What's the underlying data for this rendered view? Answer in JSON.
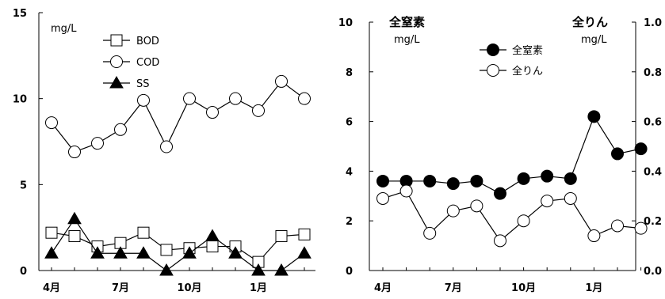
{
  "chart_data": [
    {
      "type": "line",
      "unit_label": "mg/L",
      "ylim": [
        0,
        15
      ],
      "y_ticks": [
        "0",
        "5",
        "10",
        "15"
      ],
      "x_tick_labels": [
        "4月",
        "7月",
        "10月",
        "1月"
      ],
      "x_tick_index": [
        0,
        3,
        6,
        9
      ],
      "num_points": 12,
      "legend_position": "top-center",
      "series": [
        {
          "name": "BOD",
          "marker": "square-open",
          "values": [
            2.2,
            2.0,
            1.4,
            1.6,
            2.2,
            1.2,
            1.3,
            1.4,
            1.4,
            0.5,
            2.0,
            2.1
          ]
        },
        {
          "name": "COD",
          "marker": "circle-open",
          "values": [
            8.6,
            6.9,
            7.4,
            8.2,
            9.9,
            7.2,
            10.0,
            9.2,
            10.0,
            9.3,
            11.0,
            10.0
          ]
        },
        {
          "name": "SS",
          "marker": "triangle-filled",
          "values": [
            1.0,
            3.0,
            1.0,
            1.0,
            1.0,
            0.0,
            1.0,
            2.0,
            1.0,
            0.0,
            0.0,
            1.0
          ]
        }
      ]
    },
    {
      "type": "line",
      "left_title": "全窒素",
      "left_unit": "mg/L",
      "right_title": "全りん",
      "right_unit": "mg/L",
      "ylim_left": [
        0,
        10
      ],
      "ylim_right": [
        0,
        1.0
      ],
      "y_ticks_left": [
        "0",
        "2",
        "4",
        "6",
        "8",
        "10"
      ],
      "y_ticks_right": [
        "0.0",
        "0.2",
        "0.4",
        "0.6",
        "0.8",
        "1.0"
      ],
      "x_tick_labels": [
        "4月",
        "7月",
        "10月",
        "1月"
      ],
      "x_tick_index": [
        0,
        3,
        6,
        9
      ],
      "num_points": 12,
      "legend_position": "top-center",
      "series": [
        {
          "name": "全窒素",
          "marker": "circle-filled",
          "axis": "left",
          "values": [
            3.6,
            3.6,
            3.6,
            3.5,
            3.6,
            3.1,
            3.7,
            3.8,
            3.7,
            6.2,
            4.7,
            4.9
          ]
        },
        {
          "name": "全りん",
          "marker": "circle-open",
          "axis": "right",
          "values": [
            0.29,
            0.32,
            0.15,
            0.24,
            0.26,
            0.12,
            0.2,
            0.28,
            0.29,
            0.14,
            0.18,
            0.17
          ]
        }
      ]
    }
  ]
}
